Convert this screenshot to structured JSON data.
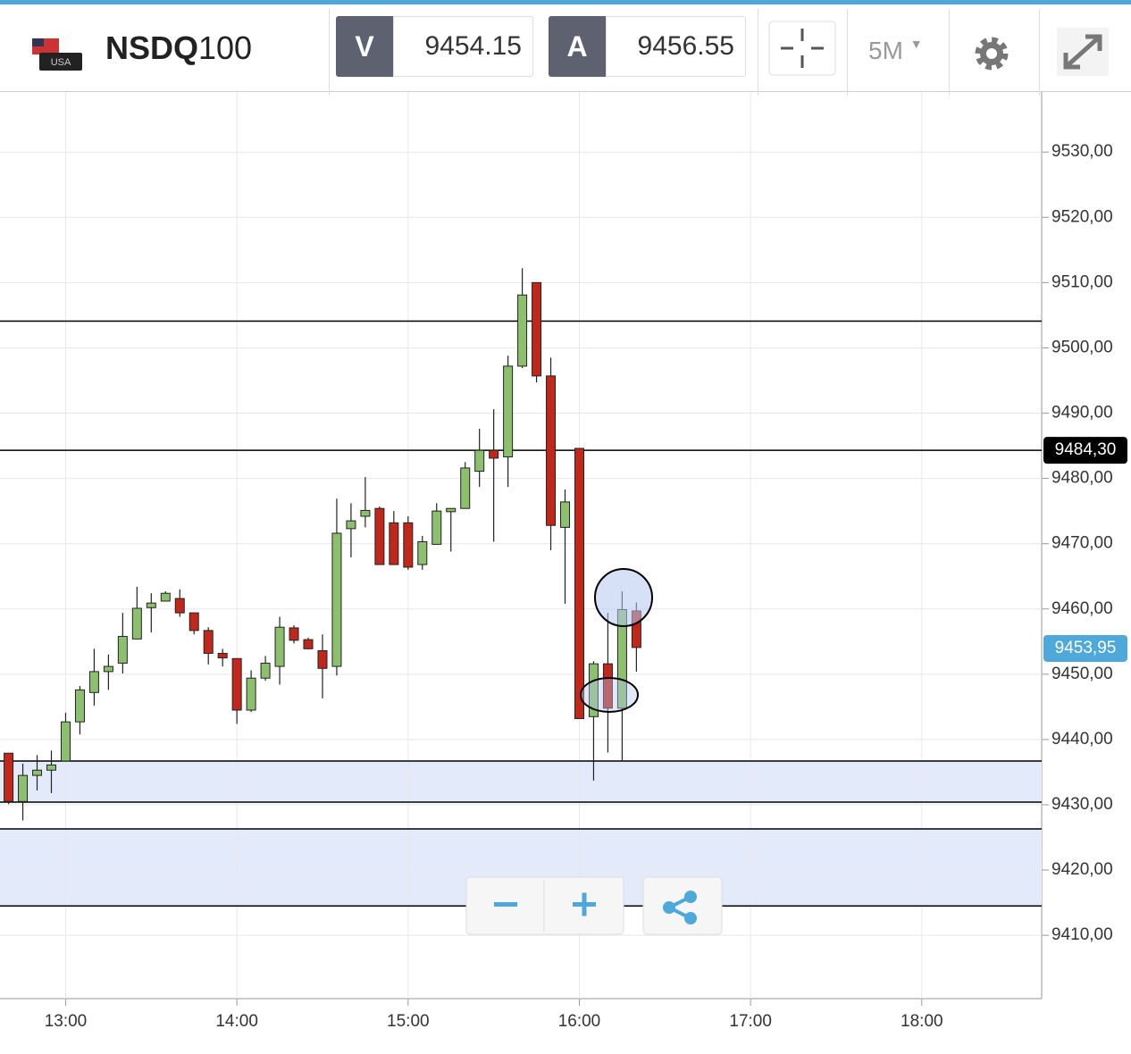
{
  "header": {
    "flag_text": "USA",
    "symbol_bold": "NSDQ",
    "symbol_rest": "100",
    "sell_label": "V",
    "sell_price": "9454.15",
    "buy_label": "A",
    "buy_price": "9456.55",
    "timeframe": "5M"
  },
  "chart_data": {
    "type": "candlestick",
    "grid": true,
    "up_color": "#8cbf6e",
    "down_color": "#c1271b",
    "x": [
      "12:40",
      "12:45",
      "12:50",
      "12:55",
      "13:00",
      "13:05",
      "13:10",
      "13:15",
      "13:20",
      "13:25",
      "13:30",
      "13:35",
      "13:40",
      "13:45",
      "13:50",
      "13:55",
      "14:00",
      "14:05",
      "14:10",
      "14:15",
      "14:20",
      "14:25",
      "14:30",
      "14:35",
      "14:40",
      "14:45",
      "14:50",
      "14:55",
      "15:00",
      "15:05",
      "15:10",
      "15:15",
      "15:20",
      "15:25",
      "15:30",
      "15:35",
      "15:40",
      "15:45",
      "15:50",
      "15:55",
      "16:00",
      "16:05",
      "16:10",
      "16:15",
      "16:20"
    ],
    "open": [
      9437.9,
      9430.5,
      9434.5,
      9435.3,
      9436.7,
      9442.7,
      9447.2,
      9450.4,
      9451.7,
      9455.4,
      9460.2,
      9461.2,
      9461.6,
      9459.4,
      9456.7,
      9453.2,
      9452.4,
      9444.5,
      9449.4,
      9451.2,
      9457.1,
      9455.3,
      9453.6,
      9451.2,
      9472.3,
      9474.2,
      9475.4,
      9473.2,
      9473.2,
      9466.8,
      9469.9,
      9474.9,
      9475.4,
      9481.1,
      9484.3,
      9483.3,
      9497.2,
      9510.0,
      9495.7,
      9472.5,
      9484.6,
      9443.5,
      9451.6,
      9444.8,
      9459.7
    ],
    "high": [
      9437.9,
      9436.3,
      9437.6,
      9438.3,
      9444.1,
      9448.2,
      9453.9,
      9453.0,
      9459.4,
      9463.4,
      9462.4,
      9462.7,
      9463.0,
      9459.4,
      9457.2,
      9453.9,
      9452.4,
      9450.6,
      9452.8,
      9458.8,
      9457.5,
      9455.6,
      9456.1,
      9476.9,
      9476.2,
      9480.2,
      9475.7,
      9475.0,
      9474.2,
      9471.2,
      9476.2,
      9475.4,
      9482.5,
      9487.6,
      9490.6,
      9498.8,
      9512.2,
      9510.0,
      9498.5,
      9478.3,
      9484.6,
      9452.0,
      9459.4,
      9462.7,
      9461.0
    ],
    "low": [
      9430.1,
      9427.6,
      9432.2,
      9431.8,
      9436.7,
      9440.8,
      9445.2,
      9447.6,
      9450.1,
      9455.4,
      9456.4,
      9461.2,
      9458.8,
      9456.1,
      9451.5,
      9451.2,
      9442.4,
      9444.2,
      9449.0,
      9448.4,
      9454.7,
      9453.8,
      9446.3,
      9449.8,
      9467.9,
      9472.5,
      9466.8,
      9466.8,
      9466.0,
      9466.0,
      9469.9,
      9468.8,
      9475.4,
      9478.7,
      9470.3,
      9478.7,
      9496.9,
      9494.7,
      9469.0,
      9460.8,
      9443.2,
      9433.7,
      9438.0,
      9436.7,
      9450.4
    ],
    "close": [
      9430.5,
      9434.5,
      9435.3,
      9436.1,
      9442.7,
      9447.6,
      9450.4,
      9451.2,
      9455.8,
      9460.1,
      9460.9,
      9462.4,
      9459.4,
      9456.7,
      9453.2,
      9452.5,
      9444.5,
      9449.4,
      9451.7,
      9457.2,
      9455.2,
      9453.9,
      9450.9,
      9471.6,
      9473.5,
      9475.1,
      9466.8,
      9466.8,
      9466.4,
      9470.3,
      9475.0,
      9475.4,
      9481.6,
      9484.3,
      9483.1,
      9497.2,
      9508.1,
      9495.7,
      9472.8,
      9476.4,
      9443.2,
      9451.6,
      9444.8,
      9459.9,
      9454.1
    ],
    "levels": [
      9504.1,
      9484.3,
      9436.7,
      9430.4,
      9426.3,
      9414.5
    ],
    "zones": [
      [
        9430.4,
        9436.7
      ],
      [
        9414.5,
        9426.3
      ]
    ],
    "price_labels": [
      {
        "value": 9484.3,
        "label": "9484,30",
        "color": "#000000"
      },
      {
        "value": 9453.95,
        "label": "9453,95",
        "color": "#4ea8d9"
      }
    ],
    "xlim": [
      "12:37",
      "18:42"
    ],
    "xticks": [
      "13:00",
      "14:00",
      "15:00",
      "16:00",
      "17:00",
      "18:00"
    ],
    "ylim": [
      9400.3,
      9539.2
    ],
    "yticks": [
      {
        "value": 9410,
        "label": "9410,00"
      },
      {
        "value": 9420,
        "label": "9420,00"
      },
      {
        "value": 9430,
        "label": "9430,00"
      },
      {
        "value": 9440,
        "label": "9440,00"
      },
      {
        "value": 9450,
        "label": "9450,00"
      },
      {
        "value": 9460,
        "label": "9460,00"
      },
      {
        "value": 9470,
        "label": "9470,00"
      },
      {
        "value": 9480,
        "label": "9480,00"
      },
      {
        "value": 9490,
        "label": "9490,00"
      },
      {
        "value": 9500,
        "label": "9500,00"
      },
      {
        "value": 9510,
        "label": "9510,00"
      },
      {
        "value": 9520,
        "label": "9520,00"
      },
      {
        "value": 9530,
        "label": "9530,00"
      }
    ]
  }
}
